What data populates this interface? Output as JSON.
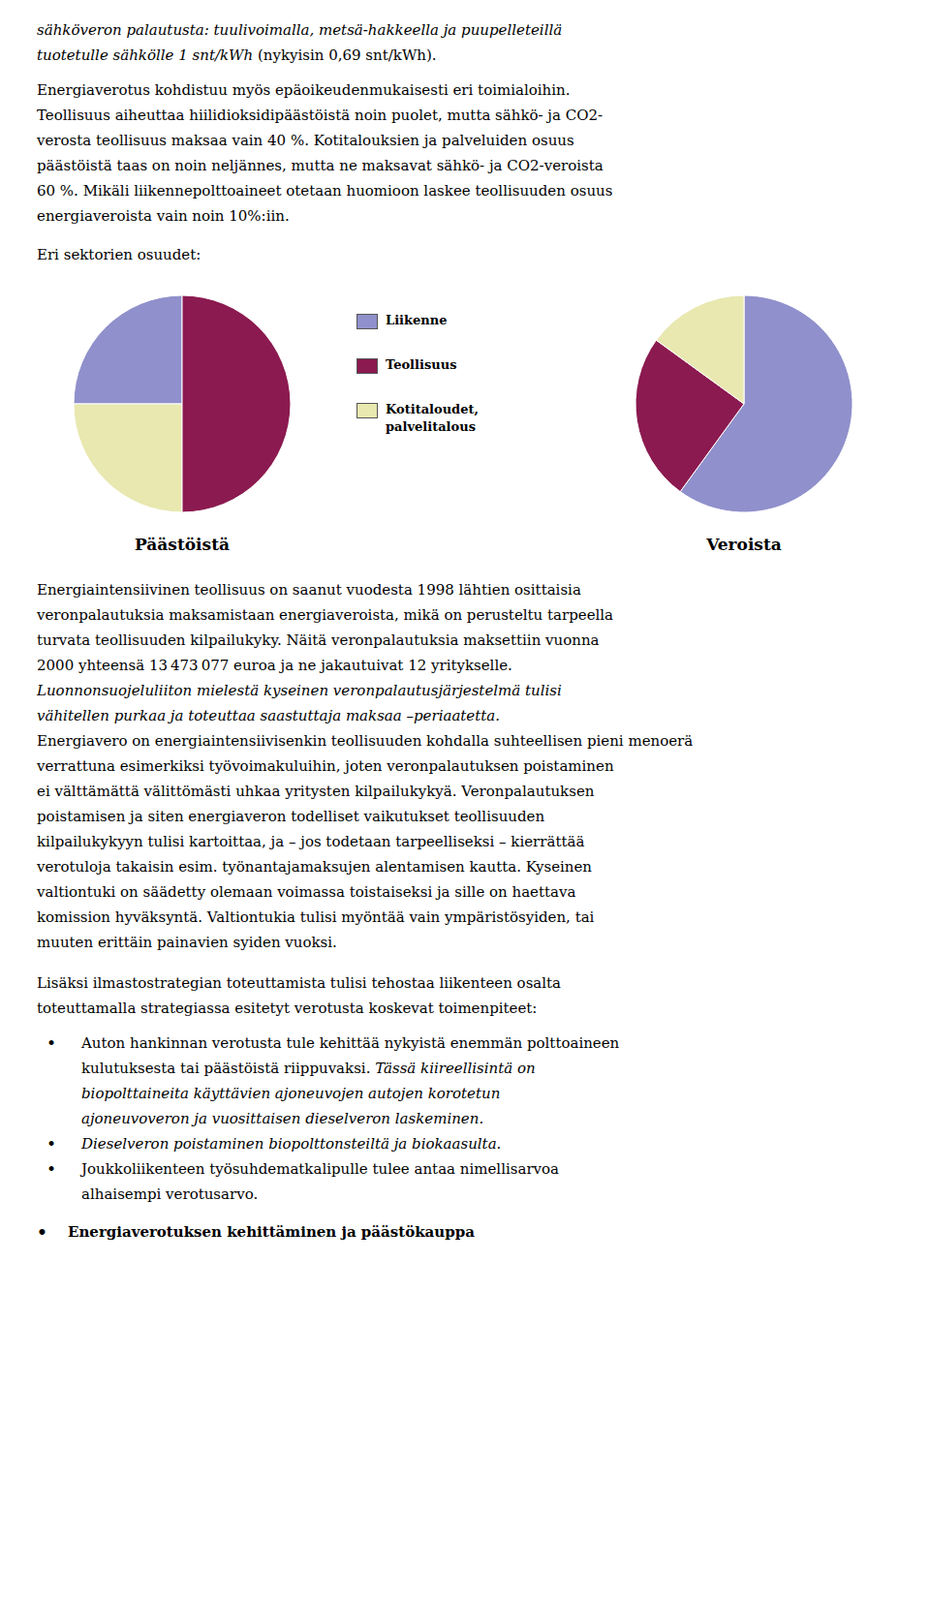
{
  "chart_data": [
    {
      "type": "pie",
      "title": "Päästöistä",
      "categories": [
        "Liikenne",
        "Kotitaloudet,\npalvelitalous",
        "Teollisuus"
      ],
      "values": [
        25,
        25,
        50
      ],
      "colors": [
        "#9090cc",
        "#e8e8b0",
        "#8b1a50"
      ],
      "annotations": [
        "sähköveron palautusta: tuulivoimalla, metsä-hakkeella ja puupelleteillä",
        "tuotetulle sähkölle 1 snt/kWh",
        " (nykyisin 0,69 snt/kWh).",
        "Energiaverotus kohdistuu myös epäoikeudenmukaisesti eri toimialoihin.",
        "Teollisuus aiheuttaa hiilidioksidipäästöistä noin puolet, mutta sähkö- ja CO2-",
        "verosta teollisuus maksaa vain 40 %. Kotitalouksien ja palveluiden osuus",
        "päästöistä taas on noin neljännes, mutta ne maksavat sähkö- ja CO2-veroista",
        "60 %. Mikäli liikennepolttoaineet otetaan huomioon laskee teollisuuden osuus",
        "energiaveroista vain noin 10%:iin.",
        "Eri sektorien osuudet:",
        "Energiaintensiivinen teollisuus on saanut vuodesta 1998 lähtien osittaisia",
        "veronpalautuksia maksamistaan energiaveroista, mikä on perusteltu tarpeella",
        "turvata teollisuuden kilpailukyky. Näitä veronpalautuksia maksettiin vuonna",
        "2000 yhteensä 13 473 077 euroa ja ne jakautuivat 12 yritykselle.",
        "Luonnonsuojeluliiton mielestä kyseinen veronpalautusjärjestelmä tulisi",
        "vähitellen purkaa ja toteuttaa saastuttaja maksaa –periaatetta.",
        "Energiavero on energiaintensiivisenkin teollisuuden kohdalla suhteellisen pieni menoerä",
        "verrattuna esimerkiksi työvoimakuluihin, joten veronpalautuksen poistaminen",
        "ei välttämättä välittömästi uhkaa yritysten kilpailukykyä. Veronpalautuksen",
        "poistamisen ja siten energiaveron todelliset vaikutukset teollisuuden",
        "kilpailukykyyn tulisi kartoittaa, ja – jos todetaan tarpeelliseksi – kierrättää",
        "verotuloja takaisin esim. työnantajamaksujen alentamisen kautta. Kyseinen",
        "valtiontuki on säädetty olemaan voimassa toistaiseksi ja sille on haettava",
        "komission hyväksyntä. Valtiontukia tulisi myöntää vain ympäristösyiden, tai",
        "muuten erittäin painavien syiden vuoksi.",
        "Lisäksi ilmastostrategian toteuttamista tulisi tehostaa liikenteen osalta",
        "toteuttamalla strategiassa esitetyt verotusta koskevat toimenpiteet:",
        "•",
        "Auton hankinnan verotusta tule kehittää nykyistä enemmän polttoaineen",
        "kulutuksesta tai päästöistä riippuvaksi.",
        " Tässä kiireellisintä on",
        "biopolttaineita käyttävien ajoneuvojen autojen korotetun",
        "ajoneuvoveron ja vuosittaisen dieselveron laskeminen.",
        "Dieselveron poistaminen biopolttonsteiltä ja biokaasulta.",
        "Joukkoliikenteen työsuhdematkalipulle tulee antaa nimellisarvoa",
        "alhaisempi verotusarvo.",
        "Energiaverotuksen kehittäminen ja päästökauppa"
      ]
    },
    {
      "type": "pie",
      "title": "Veroista",
      "categories": [
        "Liikenne",
        "Teollisuus",
        "Kotitaloudet,\npalvelitalous"
      ],
      "values": [
        60,
        25,
        15
      ],
      "colors": [
        "#9090cc",
        "#8b1a50",
        "#e8e8b0"
      ]
    }
  ]
}
